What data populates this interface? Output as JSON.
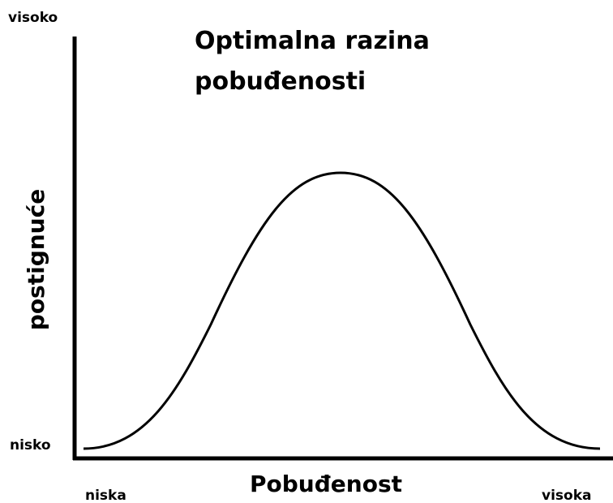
{
  "title": {
    "line1": "Optimalna razina",
    "line2": "pobuđenosti"
  },
  "y_axis": {
    "label": "postignuće",
    "high": "visoko",
    "low": "nisko"
  },
  "x_axis": {
    "label": "Pobuđenost",
    "low": "niska",
    "high": "visoka"
  }
}
